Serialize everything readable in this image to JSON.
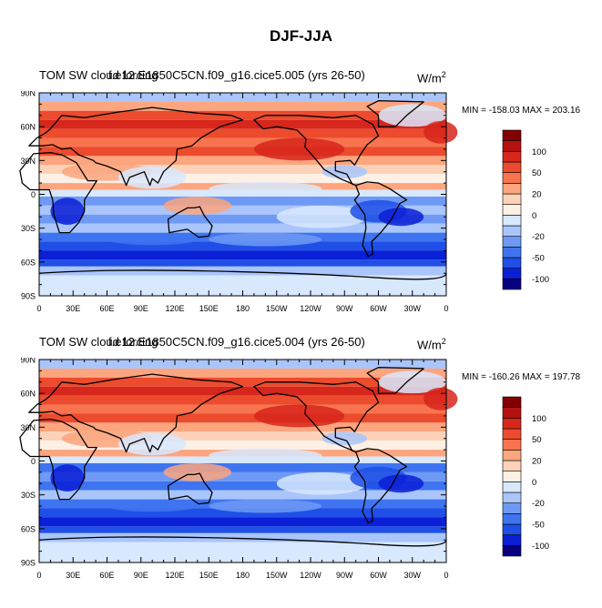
{
  "figure": {
    "title": "DJF-JJA",
    "colorbar_colors": [
      "#08007e",
      "#0a1fd6",
      "#1f4fe6",
      "#3f74f0",
      "#6e99f5",
      "#a9c5fb",
      "#d8e8fd",
      "#fdf0e5",
      "#fdd2b8",
      "#fca57e",
      "#f7744e",
      "#ec4b2d",
      "#d7261c",
      "#b4120f",
      "#840000"
    ],
    "colorbar_labels": [
      "100",
      "50",
      "20",
      "0",
      "-20",
      "-50",
      "-100"
    ],
    "lat_labels": [
      "90N",
      "60N",
      "30N",
      "0",
      "30S",
      "60S",
      "90S"
    ],
    "lon_labels": [
      "0",
      "30E",
      "60E",
      "90E",
      "120E",
      "150E",
      "180",
      "150W",
      "120W",
      "90W",
      "60W",
      "30W",
      "0"
    ]
  },
  "panels": [
    {
      "title_a": "TOM SW cloud forcing",
      "title_b": "f.e12.E1850C5CN.f09_g16.cice5.005 (yrs 26-50)",
      "units": "W/m",
      "units_exp": "2",
      "min_max": "MIN = -158.03 MAX = 203.16"
    },
    {
      "title_a": "TOM SW cloud forcing",
      "title_b": "f.e12.E1850C5CN.f09_g16.cice5.004 (yrs 26-50)",
      "units": "W/m",
      "units_exp": "2",
      "min_max": "MIN = -160.26 MAX = 197.78"
    }
  ]
}
